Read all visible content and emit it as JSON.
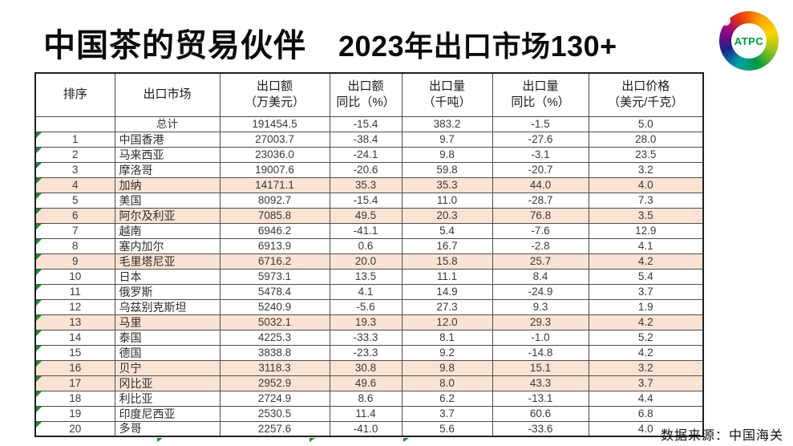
{
  "title": {
    "main": "中国茶的贸易伙伴",
    "sub": "2023年出口市场130+"
  },
  "logo": {
    "text": "ATPC"
  },
  "source": "数据来源：中国海关",
  "colors": {
    "highlight": "#FBE3D4",
    "triangle_green": "#1E8A32",
    "logo_green": "#009944"
  },
  "table": {
    "headers": [
      {
        "l1": "排序",
        "l2": ""
      },
      {
        "l1": "出口市场",
        "l2": ""
      },
      {
        "l1": "出口额",
        "l2": "（万美元）"
      },
      {
        "l1": "出口额",
        "l2": "同比（%）"
      },
      {
        "l1": "出口量",
        "l2": "（千吨）"
      },
      {
        "l1": "出口量",
        "l2": "同比（%）"
      },
      {
        "l1": "出口价格",
        "l2": "（美元/千克）"
      }
    ],
    "total_row": {
      "rank": "",
      "market": "总计",
      "value": "191454.5",
      "value_yoy": "-15.4",
      "volume": "383.2",
      "volume_yoy": "-1.5",
      "price": "5.0",
      "highlight": false
    },
    "rows": [
      {
        "rank": "1",
        "market": "中国香港",
        "value": "27003.7",
        "value_yoy": "-38.4",
        "volume": "9.7",
        "volume_yoy": "-27.6",
        "price": "28.0",
        "highlight": false
      },
      {
        "rank": "2",
        "market": "马来西亚",
        "value": "23036.0",
        "value_yoy": "-24.1",
        "volume": "9.8",
        "volume_yoy": "-3.1",
        "price": "23.5",
        "highlight": false
      },
      {
        "rank": "3",
        "market": "摩洛哥",
        "value": "19007.6",
        "value_yoy": "-20.6",
        "volume": "59.8",
        "volume_yoy": "-20.7",
        "price": "3.2",
        "highlight": false
      },
      {
        "rank": "4",
        "market": "加纳",
        "value": "14171.1",
        "value_yoy": "35.3",
        "volume": "35.3",
        "volume_yoy": "44.0",
        "price": "4.0",
        "highlight": true
      },
      {
        "rank": "5",
        "market": "美国",
        "value": "8092.7",
        "value_yoy": "-15.4",
        "volume": "11.0",
        "volume_yoy": "-28.7",
        "price": "7.3",
        "highlight": false
      },
      {
        "rank": "6",
        "market": "阿尔及利亚",
        "value": "7085.8",
        "value_yoy": "49.5",
        "volume": "20.3",
        "volume_yoy": "76.8",
        "price": "3.5",
        "highlight": true
      },
      {
        "rank": "7",
        "market": "越南",
        "value": "6946.2",
        "value_yoy": "-41.1",
        "volume": "5.4",
        "volume_yoy": "-7.6",
        "price": "12.9",
        "highlight": false
      },
      {
        "rank": "8",
        "market": "塞内加尔",
        "value": "6913.9",
        "value_yoy": "0.6",
        "volume": "16.7",
        "volume_yoy": "-2.8",
        "price": "4.1",
        "highlight": false
      },
      {
        "rank": "9",
        "market": "毛里塔尼亚",
        "value": "6716.2",
        "value_yoy": "20.0",
        "volume": "15.8",
        "volume_yoy": "25.7",
        "price": "4.2",
        "highlight": true
      },
      {
        "rank": "10",
        "market": "日本",
        "value": "5973.1",
        "value_yoy": "13.5",
        "volume": "11.1",
        "volume_yoy": "8.4",
        "price": "5.4",
        "highlight": false
      },
      {
        "rank": "11",
        "market": "俄罗斯",
        "value": "5478.4",
        "value_yoy": "4.1",
        "volume": "14.9",
        "volume_yoy": "-24.9",
        "price": "3.7",
        "highlight": false
      },
      {
        "rank": "12",
        "market": "乌兹别克斯坦",
        "value": "5240.9",
        "value_yoy": "-5.6",
        "volume": "27.3",
        "volume_yoy": "9.3",
        "price": "1.9",
        "highlight": false
      },
      {
        "rank": "13",
        "market": "马里",
        "value": "5032.1",
        "value_yoy": "19.3",
        "volume": "12.0",
        "volume_yoy": "29.3",
        "price": "4.2",
        "highlight": true
      },
      {
        "rank": "14",
        "market": "泰国",
        "value": "4225.3",
        "value_yoy": "-33.3",
        "volume": "8.1",
        "volume_yoy": "-1.0",
        "price": "5.2",
        "highlight": false
      },
      {
        "rank": "15",
        "market": "德国",
        "value": "3838.8",
        "value_yoy": "-23.3",
        "volume": "9.2",
        "volume_yoy": "-14.8",
        "price": "4.2",
        "highlight": false
      },
      {
        "rank": "16",
        "market": "贝宁",
        "value": "3118.3",
        "value_yoy": "30.8",
        "volume": "9.8",
        "volume_yoy": "15.1",
        "price": "3.2",
        "highlight": true
      },
      {
        "rank": "17",
        "market": "冈比亚",
        "value": "2952.9",
        "value_yoy": "49.6",
        "volume": "8.0",
        "volume_yoy": "43.3",
        "price": "3.7",
        "highlight": true
      },
      {
        "rank": "18",
        "market": "利比亚",
        "value": "2724.9",
        "value_yoy": "8.6",
        "volume": "6.2",
        "volume_yoy": "-13.1",
        "price": "4.4",
        "highlight": false
      },
      {
        "rank": "19",
        "market": "印度尼西亚",
        "value": "2530.5",
        "value_yoy": "11.4",
        "volume": "3.7",
        "volume_yoy": "60.6",
        "price": "6.8",
        "highlight": false
      },
      {
        "rank": "20",
        "market": "多哥",
        "value": "2257.6",
        "value_yoy": "-41.0",
        "volume": "5.6",
        "volume_yoy": "-33.6",
        "price": "4.0",
        "highlight": false
      }
    ]
  }
}
